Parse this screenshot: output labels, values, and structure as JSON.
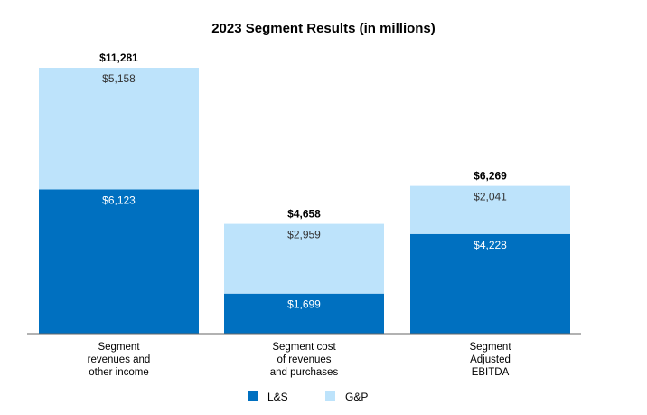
{
  "chart_data": {
    "type": "bar",
    "stacked": true,
    "title": "2023 Segment Results (in millions)",
    "xlabel": "",
    "ylabel": "",
    "categories": [
      [
        "Segment",
        "revenues and",
        "other income"
      ],
      [
        "Segment cost",
        "of revenues",
        "and purchases"
      ],
      [
        "Segment",
        "Adjusted",
        "EBITDA"
      ]
    ],
    "series": [
      {
        "name": "L&S",
        "values": [
          6123,
          1699,
          4228
        ],
        "labels": [
          "$6,123",
          "$1,699",
          "$4,228"
        ],
        "color": "#0070c0",
        "label_color": "#ffffff"
      },
      {
        "name": "G&P",
        "values": [
          5158,
          2959,
          2041
        ],
        "labels": [
          "$5,158",
          "$2,959",
          "$2,041"
        ],
        "color": "#bde3fb",
        "label_color": "#333333"
      }
    ],
    "totals": [
      11281,
      4658,
      6269
    ],
    "total_labels": [
      "$11,281",
      "$4,658",
      "$6,269"
    ],
    "ylim": [
      0,
      11281
    ],
    "grid": false,
    "legend_position": "bottom-center"
  }
}
